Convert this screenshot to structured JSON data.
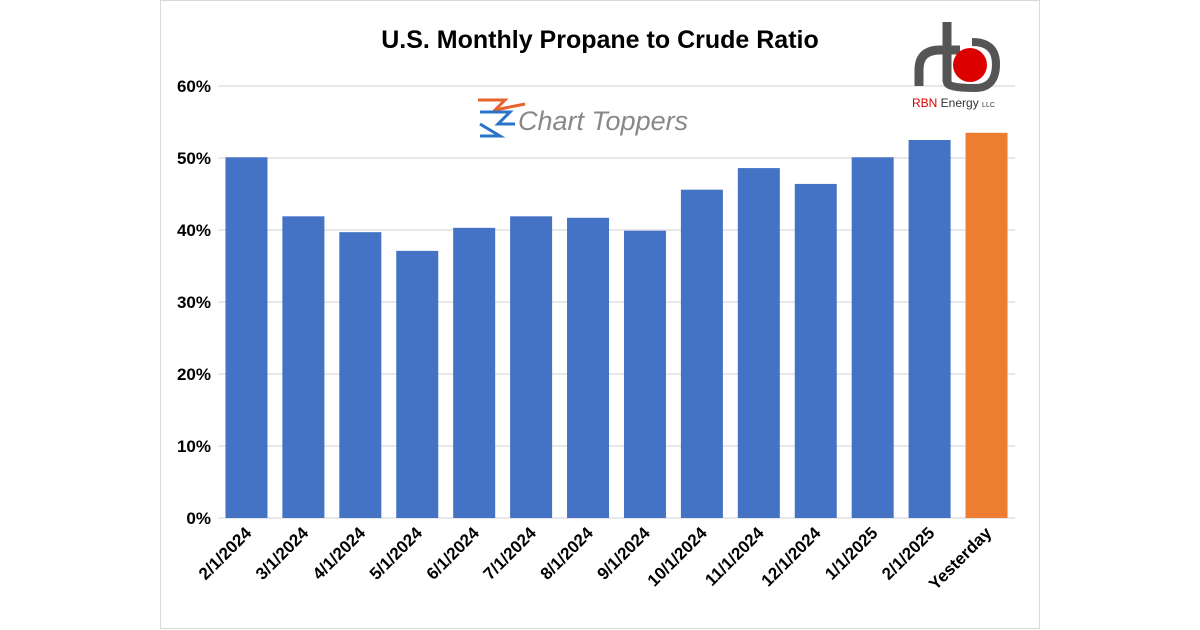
{
  "chart_data": {
    "type": "bar",
    "title": "U.S. Monthly Propane to Crude Ratio",
    "xlabel": "",
    "ylabel": "",
    "categories": [
      "2/1/2024",
      "3/1/2024",
      "4/1/2024",
      "5/1/2024",
      "6/1/2024",
      "7/1/2024",
      "8/1/2024",
      "9/1/2024",
      "10/1/2024",
      "11/1/2024",
      "12/1/2024",
      "1/1/2025",
      "2/1/2025",
      "Yesterday"
    ],
    "values": [
      50.1,
      41.9,
      39.7,
      37.1,
      40.3,
      41.9,
      41.7,
      39.9,
      45.6,
      48.6,
      46.4,
      50.1,
      52.5,
      53.5
    ],
    "ylim": [
      0,
      60
    ],
    "yticks": [
      "0%",
      "10%",
      "20%",
      "30%",
      "40%",
      "50%",
      "60%"
    ],
    "grid": true,
    "legend": "none",
    "colors": {
      "bar": "#4472c4",
      "highlight": "#ed7d31",
      "grid": "#d9d9d9"
    }
  },
  "logos": {
    "chart_toppers": "Chart Toppers",
    "rbn": "RBN Energy LLC"
  }
}
